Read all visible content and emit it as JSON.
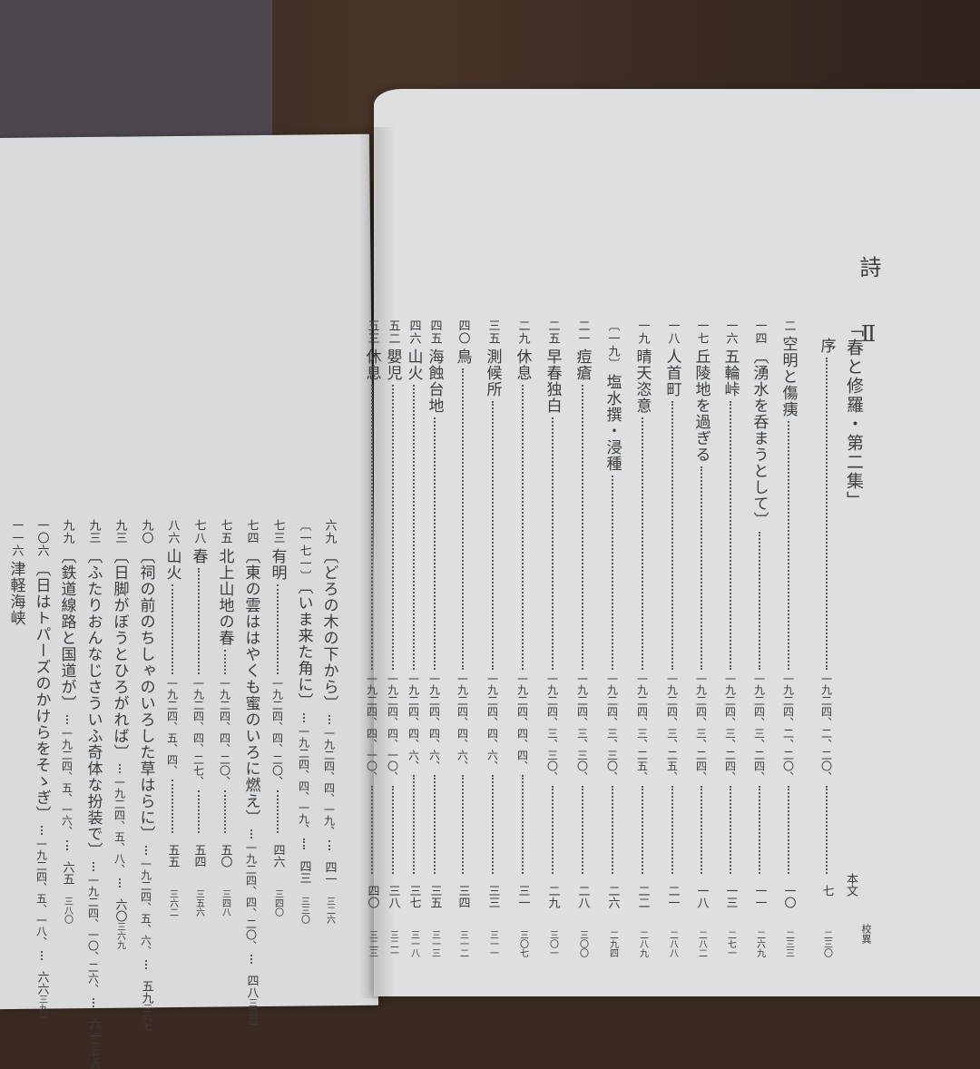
{
  "heading": {
    "section": "詩 Ⅱ",
    "collection": "「春と修羅・第二集」",
    "col_honbun": "本文",
    "col_koui": "校異"
  },
  "right_page": [
    {
      "num": "",
      "title": "序",
      "date": "一九二四、二、二〇、",
      "page": "七",
      "koui": "二三〇"
    },
    {
      "num": "二",
      "title": "空明と傷痍",
      "date": "一九二四、二、二〇、",
      "page": "一〇",
      "koui": "二三三"
    },
    {
      "num": "一四",
      "title": "〔湧水を呑まうとして〕",
      "date": "一九二四、三、二四、",
      "page": "一一",
      "koui": "二六九"
    },
    {
      "num": "一六",
      "title": "五輪峠",
      "date": "一九二四、三、二四、",
      "page": "一三",
      "koui": "二七一"
    },
    {
      "num": "一七",
      "title": "丘陵地を過ぎる",
      "date": "一九二四、三、二四、",
      "page": "一八",
      "koui": "二八二"
    },
    {
      "num": "一八",
      "title": "人首町",
      "date": "一九二四、三、二五、",
      "page": "二一",
      "koui": "二八八"
    },
    {
      "num": "一九",
      "title": "晴天恣意",
      "date": "一九二四、三、二五、",
      "page": "二二",
      "koui": "二八九"
    },
    {
      "num": "〔一九〕",
      "title": "塩水撰・浸種",
      "date": "一九二四、三、三〇、",
      "page": "二六",
      "koui": "二九四"
    },
    {
      "num": "二一",
      "title": "痘瘡",
      "date": "一九二四、三、三〇、",
      "page": "二八",
      "koui": "三〇〇"
    },
    {
      "num": "二五",
      "title": "早春独白",
      "date": "一九二四、三、三〇、",
      "page": "二九",
      "koui": "三〇一"
    },
    {
      "num": "二九",
      "title": "休息",
      "date": "一九二四、四、四、",
      "page": "三一",
      "koui": "三〇七"
    },
    {
      "num": "三五",
      "title": "測候所",
      "date": "一九二四、四、六、",
      "page": "三三",
      "koui": "三一一"
    },
    {
      "num": "四〇",
      "title": "鳥",
      "date": "一九二四、四、六、",
      "page": "三四",
      "koui": "三一二"
    },
    {
      "num": "四五",
      "title": "海蝕台地",
      "date": "一九二四、四、六、",
      "page": "三五",
      "koui": "三一三"
    },
    {
      "num": "四六",
      "title": "山火",
      "date": "一九二四、四、六、",
      "page": "三七",
      "koui": "三一八"
    },
    {
      "num": "五二",
      "title": "嬰児",
      "date": "一九二四、四、一〇、",
      "page": "三八",
      "koui": "三二一"
    },
    {
      "num": "五三",
      "title": "休息",
      "date": "一九二四、四、一〇、",
      "page": "四〇",
      "koui": "三二三"
    }
  ],
  "left_page": [
    {
      "num": "六九",
      "title": "〔どろの木の下から〕",
      "date": "一九二四、四、一九、",
      "page": "四一",
      "koui": "三二六"
    },
    {
      "num": "〔一七一〕",
      "title": "〔いま来た角に〕",
      "date": "一九二四、四、一九、",
      "page": "四三",
      "koui": "三三〇"
    },
    {
      "num": "七三",
      "title": "有明",
      "date": "一九二四、四、二〇、",
      "page": "四六",
      "koui": "三四〇"
    },
    {
      "num": "七四",
      "title": "〔東の雲ははやくも蜜のいろに燃え〕",
      "date": "一九二四、四、二〇、",
      "page": "四八",
      "koui": "三四四"
    },
    {
      "num": "七五",
      "title": "北上山地の春",
      "date": "一九二四、四、二〇、",
      "page": "五〇",
      "koui": "三四八"
    },
    {
      "num": "七八",
      "title": "春",
      "date": "一九二四、四、二七、",
      "page": "五四",
      "koui": "三五六"
    },
    {
      "num": "八六",
      "title": "山火",
      "date": "一九二四、五、四、",
      "page": "五五",
      "koui": "三六二"
    },
    {
      "num": "九〇",
      "title": "〔祠の前のちしゃのいろした草はらに〕",
      "date": "一九二四、五、六、",
      "page": "五九",
      "koui": "三六七"
    },
    {
      "num": "九三",
      "title": "〔日脚がぼうとひろがれば〕",
      "date": "一九二四、五、八、",
      "page": "六〇",
      "koui": "三六九"
    },
    {
      "num": "九三",
      "title": "〔ふたりおんなじさういふ奇体な扮装で〕",
      "date": "一九二四、一〇、二六、",
      "page": "六一",
      "koui": "三七六"
    },
    {
      "num": "九九",
      "title": "〔鉄道線路と国道が〕",
      "date": "一九二四、五、一六、",
      "page": "六五",
      "koui": "三八〇"
    },
    {
      "num": "一〇六",
      "title": "〔日はトパーズのかけらをそゝぎ〕",
      "date": "一九二四、五、一八、",
      "page": "六六",
      "koui": "三九一"
    },
    {
      "num": "一一六",
      "title": "津軽海峡",
      "date": "",
      "page": "",
      "koui": ""
    }
  ]
}
